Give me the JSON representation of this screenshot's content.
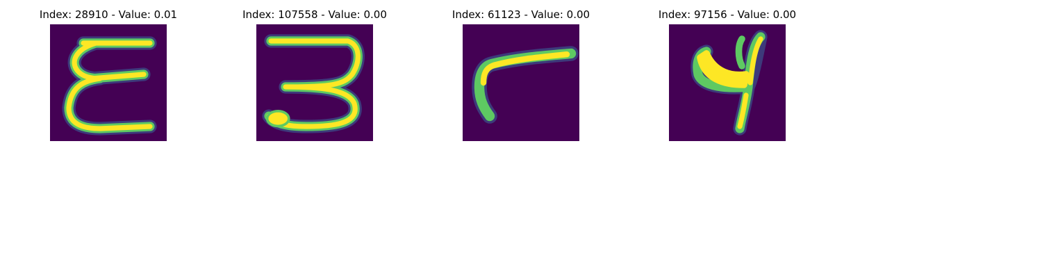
{
  "panels": [
    {
      "title": "Index: 28910 - Value: 0.01",
      "glyph": "E"
    },
    {
      "title": "Index: 107558 - Value: 0.00",
      "glyph": "3"
    },
    {
      "title": "Index: 61123 - Value: 0.00",
      "glyph": "r"
    },
    {
      "title": "Index: 97156 - Value: 0.00",
      "glyph": "9"
    }
  ],
  "colors": {
    "background": "#440154",
    "stroke_core": "#fde725",
    "stroke_mid": "#5ec962",
    "stroke_edge": "#21918c",
    "stroke_halo": "#3b528b"
  }
}
